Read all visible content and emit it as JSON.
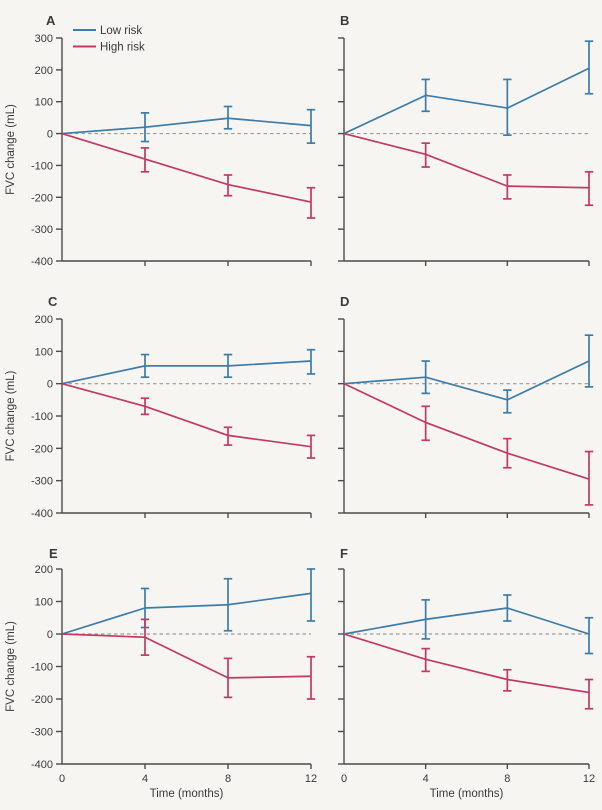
{
  "figure": {
    "background": "#f6f5f2"
  },
  "colors": {
    "low_risk": "#3d7ca8",
    "high_risk": "#c13a62",
    "axis": "#4b4b4d",
    "text": "#3a3a3a",
    "zero_line": "#9b9b9b"
  },
  "legend": {
    "items": [
      {
        "label": "Low risk",
        "color_key": "low_risk"
      },
      {
        "label": "High risk",
        "color_key": "high_risk"
      }
    ]
  },
  "axes": {
    "x_label": "Time (months)",
    "y_label": "FVC change (mL)",
    "x_ticks": [
      0,
      4,
      8,
      12
    ]
  },
  "chart_data": [
    {
      "panel": "A",
      "type": "line",
      "x": [
        0,
        4,
        8,
        12
      ],
      "xlabel": "Time (months)",
      "ylabel": "FVC change (mL)",
      "ylim": [
        -400,
        300
      ],
      "yticks": [
        300,
        200,
        100,
        0,
        -100,
        -200,
        -300,
        -400
      ],
      "series": [
        {
          "name": "Low risk",
          "values": [
            0,
            20,
            48,
            25
          ],
          "err_lo": [
            null,
            -25,
            15,
            -30
          ],
          "err_hi": [
            null,
            65,
            85,
            75
          ]
        },
        {
          "name": "High risk",
          "values": [
            0,
            -80,
            -160,
            -215
          ],
          "err_lo": [
            null,
            -120,
            -195,
            -265
          ],
          "err_hi": [
            null,
            -45,
            -130,
            -170
          ]
        }
      ],
      "show_legend": true,
      "show_y_tick_labels": true,
      "show_x_tick_labels": false,
      "zero_line": true
    },
    {
      "panel": "B",
      "type": "line",
      "x": [
        0,
        4,
        8,
        12
      ],
      "xlabel": "Time (months)",
      "ylabel": "FVC change (mL)",
      "ylim": [
        -400,
        300
      ],
      "yticks": [
        300,
        200,
        100,
        0,
        -100,
        -200,
        -300,
        -400
      ],
      "series": [
        {
          "name": "Low risk",
          "values": [
            0,
            120,
            80,
            205
          ],
          "err_lo": [
            null,
            70,
            -5,
            125
          ],
          "err_hi": [
            null,
            170,
            170,
            290
          ]
        },
        {
          "name": "High risk",
          "values": [
            0,
            -65,
            -165,
            -170
          ],
          "err_lo": [
            null,
            -105,
            -205,
            -225
          ],
          "err_hi": [
            null,
            -30,
            -130,
            -120
          ]
        }
      ],
      "show_legend": false,
      "show_y_tick_labels": false,
      "show_x_tick_labels": false,
      "zero_line": true
    },
    {
      "panel": "C",
      "type": "line",
      "x": [
        0,
        4,
        8,
        12
      ],
      "xlabel": "Time (months)",
      "ylabel": "FVC change (mL)",
      "ylim": [
        -400,
        200
      ],
      "yticks": [
        200,
        100,
        0,
        -100,
        -200,
        -300,
        -400
      ],
      "series": [
        {
          "name": "Low risk",
          "values": [
            0,
            55,
            55,
            70
          ],
          "err_lo": [
            null,
            20,
            20,
            30
          ],
          "err_hi": [
            null,
            90,
            90,
            105
          ]
        },
        {
          "name": "High risk",
          "values": [
            0,
            -70,
            -160,
            -195
          ],
          "err_lo": [
            null,
            -95,
            -190,
            -230
          ],
          "err_hi": [
            null,
            -45,
            -135,
            -160
          ]
        }
      ],
      "show_legend": false,
      "show_y_tick_labels": true,
      "show_x_tick_labels": false,
      "zero_line": true
    },
    {
      "panel": "D",
      "type": "line",
      "x": [
        0,
        4,
        8,
        12
      ],
      "xlabel": "Time (months)",
      "ylabel": "FVC change (mL)",
      "ylim": [
        -400,
        200
      ],
      "yticks": [
        200,
        100,
        0,
        -100,
        -200,
        -300,
        -400
      ],
      "series": [
        {
          "name": "Low risk",
          "values": [
            0,
            20,
            -50,
            70
          ],
          "err_lo": [
            null,
            -30,
            -90,
            -10
          ],
          "err_hi": [
            null,
            70,
            -20,
            150
          ]
        },
        {
          "name": "High risk",
          "values": [
            0,
            -120,
            -215,
            -295
          ],
          "err_lo": [
            null,
            -175,
            -260,
            -375
          ],
          "err_hi": [
            null,
            -70,
            -170,
            -210
          ]
        }
      ],
      "show_legend": false,
      "show_y_tick_labels": false,
      "show_x_tick_labels": false,
      "zero_line": true
    },
    {
      "panel": "E",
      "type": "line",
      "x": [
        0,
        4,
        8,
        12
      ],
      "xlabel": "Time (months)",
      "ylabel": "FVC change (mL)",
      "ylim": [
        -400,
        200
      ],
      "yticks": [
        200,
        100,
        0,
        -100,
        -200,
        -300,
        -400
      ],
      "series": [
        {
          "name": "Low risk",
          "values": [
            0,
            80,
            90,
            125
          ],
          "err_lo": [
            null,
            20,
            10,
            40
          ],
          "err_hi": [
            null,
            140,
            170,
            200
          ]
        },
        {
          "name": "High risk",
          "values": [
            0,
            -10,
            -135,
            -130
          ],
          "err_lo": [
            null,
            -65,
            -195,
            -200
          ],
          "err_hi": [
            null,
            45,
            -75,
            -70
          ]
        }
      ],
      "show_legend": false,
      "show_y_tick_labels": true,
      "show_x_tick_labels": true,
      "zero_line": true
    },
    {
      "panel": "F",
      "type": "line",
      "x": [
        0,
        4,
        8,
        12
      ],
      "xlabel": "Time (months)",
      "ylabel": "FVC change (mL)",
      "ylim": [
        -400,
        200
      ],
      "yticks": [
        200,
        100,
        0,
        -100,
        -200,
        -300,
        -400
      ],
      "series": [
        {
          "name": "Low risk",
          "values": [
            0,
            45,
            80,
            0
          ],
          "err_lo": [
            null,
            -15,
            40,
            -60
          ],
          "err_hi": [
            null,
            105,
            120,
            50
          ]
        },
        {
          "name": "High risk",
          "values": [
            0,
            -78,
            -140,
            -180
          ],
          "err_lo": [
            null,
            -115,
            -175,
            -230
          ],
          "err_hi": [
            null,
            -45,
            -110,
            -140
          ]
        }
      ],
      "show_legend": false,
      "show_y_tick_labels": false,
      "show_x_tick_labels": true,
      "zero_line": true
    }
  ]
}
